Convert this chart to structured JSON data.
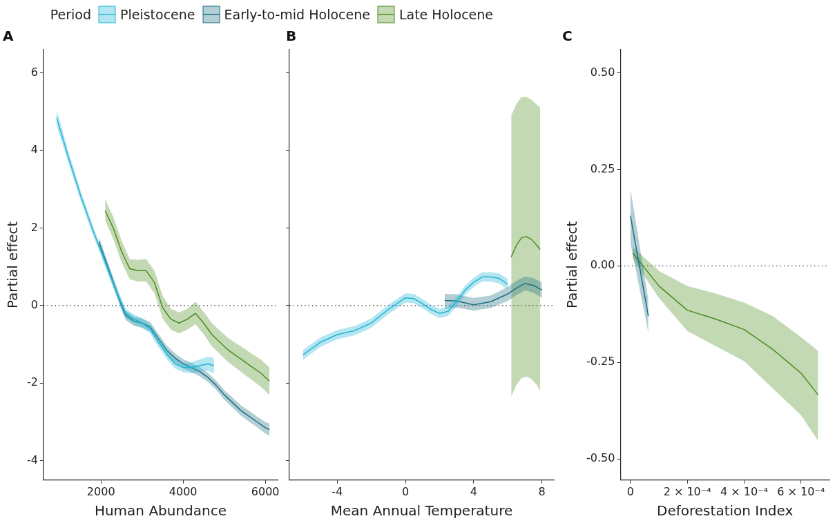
{
  "chart_data": [
    {
      "type": "line",
      "title": "A",
      "xlabel": "Human Abundance",
      "ylabel": "Partial effect",
      "legend": "top right",
      "legend_title": "Period",
      "marker": "none",
      "xlim": [
        600,
        6300
      ],
      "xticks": [
        2000,
        4000,
        6000
      ],
      "ylim": [
        -4.5,
        6.6
      ],
      "yticks": [
        -4,
        -2,
        0,
        2,
        4,
        6
      ],
      "ref_lines": [
        {
          "axis": "y",
          "value": 0,
          "line_style": "dotted"
        }
      ],
      "series": [
        {
          "name": "Pleistocene",
          "color": "#1fb5d6",
          "x": [
            920,
            1200,
            1500,
            1800,
            2000,
            2200,
            2400,
            2600,
            2800,
            3000,
            3200,
            3400,
            3600,
            3800,
            4000,
            4200,
            4400,
            4600,
            4750
          ],
          "values": [
            4.85,
            3.85,
            2.85,
            1.95,
            1.4,
            0.85,
            0.3,
            -0.2,
            -0.35,
            -0.45,
            -0.6,
            -0.95,
            -1.25,
            -1.5,
            -1.6,
            -1.6,
            -1.55,
            -1.5,
            -1.55
          ],
          "lower": [
            4.65,
            3.7,
            2.72,
            1.83,
            1.28,
            0.73,
            0.18,
            -0.32,
            -0.47,
            -0.57,
            -0.72,
            -1.07,
            -1.37,
            -1.62,
            -1.72,
            -1.74,
            -1.71,
            -1.68,
            -1.75
          ],
          "upper": [
            5.05,
            4.0,
            2.98,
            2.07,
            1.52,
            0.97,
            0.42,
            -0.08,
            -0.23,
            -0.33,
            -0.48,
            -0.83,
            -1.13,
            -1.38,
            -1.48,
            -1.46,
            -1.39,
            -1.32,
            -1.35
          ]
        },
        {
          "name": "Early-to-mid Holocene",
          "color": "#1a6e82",
          "x": [
            1950,
            2200,
            2400,
            2500,
            2600,
            2800,
            3000,
            3200,
            3400,
            3600,
            3800,
            4000,
            4200,
            4400,
            4600,
            4800,
            5000,
            5200,
            5400,
            5600,
            5800,
            6000,
            6100
          ],
          "values": [
            1.65,
            0.9,
            0.3,
            0.0,
            -0.25,
            -0.4,
            -0.45,
            -0.55,
            -0.85,
            -1.15,
            -1.35,
            -1.5,
            -1.6,
            -1.7,
            -1.85,
            -2.05,
            -2.3,
            -2.5,
            -2.7,
            -2.85,
            -3.0,
            -3.15,
            -3.2
          ],
          "lower": [
            1.53,
            0.78,
            0.18,
            -0.12,
            -0.37,
            -0.52,
            -0.57,
            -0.67,
            -0.97,
            -1.27,
            -1.47,
            -1.62,
            -1.72,
            -1.82,
            -1.97,
            -2.17,
            -2.42,
            -2.63,
            -2.83,
            -2.99,
            -3.14,
            -3.3,
            -3.36
          ],
          "upper": [
            1.77,
            1.02,
            0.42,
            0.12,
            -0.13,
            -0.28,
            -0.33,
            -0.43,
            -0.73,
            -1.03,
            -1.23,
            -1.38,
            -1.48,
            -1.58,
            -1.73,
            -1.93,
            -2.18,
            -2.37,
            -2.57,
            -2.71,
            -2.86,
            -3.0,
            -3.04
          ]
        },
        {
          "name": "Late Holocene",
          "color": "#4c8c1e",
          "x": [
            2100,
            2300,
            2500,
            2700,
            2900,
            3100,
            3300,
            3500,
            3700,
            3900,
            4100,
            4300,
            4500,
            4700,
            4900,
            5100,
            5300,
            5500,
            5700,
            5900,
            6100
          ],
          "values": [
            2.45,
            2.0,
            1.4,
            0.95,
            0.9,
            0.9,
            0.6,
            -0.05,
            -0.35,
            -0.45,
            -0.35,
            -0.2,
            -0.45,
            -0.75,
            -0.95,
            -1.15,
            -1.3,
            -1.45,
            -1.6,
            -1.75,
            -1.95
          ],
          "lower": [
            2.2,
            1.72,
            1.12,
            0.68,
            0.62,
            0.62,
            0.32,
            -0.33,
            -0.62,
            -0.72,
            -0.62,
            -0.48,
            -0.74,
            -1.05,
            -1.25,
            -1.46,
            -1.62,
            -1.78,
            -1.94,
            -2.1,
            -2.3
          ],
          "upper": [
            2.75,
            2.28,
            1.68,
            1.2,
            1.18,
            1.2,
            0.9,
            0.25,
            -0.08,
            -0.18,
            -0.08,
            0.1,
            -0.16,
            -0.45,
            -0.65,
            -0.84,
            -0.98,
            -1.12,
            -1.26,
            -1.4,
            -1.6
          ]
        }
      ]
    },
    {
      "type": "line",
      "title": "B",
      "xlabel": "Mean Annual Temperature",
      "marker": "none",
      "tick_labels": "x",
      "xlim": [
        -6.8,
        8.7
      ],
      "xticks": [
        -4,
        0,
        4,
        8
      ],
      "ylim": [
        -4.5,
        6.6
      ],
      "yticks": [
        -4,
        -2,
        0,
        2,
        4,
        6
      ],
      "ref_lines": [
        {
          "axis": "y",
          "value": 0,
          "line_style": "dotted"
        }
      ],
      "series": [
        {
          "color": "#1fb5d6",
          "x": [
            -6,
            -5,
            -4,
            -3,
            -2,
            -1,
            0,
            0.5,
            1,
            1.5,
            2,
            2.5,
            3,
            3.5,
            4,
            4.5,
            5,
            5.5,
            6
          ],
          "values": [
            -1.27,
            -0.95,
            -0.75,
            -0.65,
            -0.45,
            -0.1,
            0.2,
            0.18,
            0.05,
            -0.1,
            -0.2,
            -0.15,
            0.1,
            0.4,
            0.6,
            0.74,
            0.74,
            0.7,
            0.55
          ],
          "lower": [
            -1.4,
            -1.07,
            -0.87,
            -0.77,
            -0.57,
            -0.22,
            0.08,
            0.06,
            -0.07,
            -0.22,
            -0.32,
            -0.27,
            -0.02,
            0.28,
            0.48,
            0.62,
            0.62,
            0.57,
            0.41
          ],
          "upper": [
            -1.14,
            -0.83,
            -0.63,
            -0.53,
            -0.33,
            0.02,
            0.32,
            0.3,
            0.17,
            0.02,
            -0.08,
            -0.03,
            0.22,
            0.52,
            0.72,
            0.86,
            0.86,
            0.83,
            0.69
          ]
        },
        {
          "color": "#1a6e82",
          "x": [
            2.3,
            3,
            4,
            5,
            6,
            6.5,
            7,
            7.5,
            8
          ],
          "values": [
            0.13,
            0.12,
            0.02,
            0.1,
            0.3,
            0.45,
            0.57,
            0.52,
            0.4
          ],
          "lower": [
            -0.08,
            -0.05,
            -0.13,
            -0.06,
            0.12,
            0.27,
            0.39,
            0.33,
            0.2
          ],
          "upper": [
            0.3,
            0.29,
            0.2,
            0.26,
            0.48,
            0.64,
            0.75,
            0.71,
            0.6
          ]
        },
        {
          "color": "#4c8c1e",
          "x": [
            6.2,
            6.5,
            6.8,
            7.1,
            7.4,
            7.7,
            7.9
          ],
          "values": [
            1.25,
            1.55,
            1.75,
            1.78,
            1.7,
            1.55,
            1.45
          ],
          "lower": [
            -2.35,
            -2.05,
            -1.87,
            -1.83,
            -1.9,
            -2.05,
            -2.2
          ],
          "upper": [
            4.9,
            5.2,
            5.37,
            5.38,
            5.3,
            5.18,
            5.1
          ]
        }
      ]
    },
    {
      "type": "line",
      "title": "C",
      "xlabel": "Deforestation Index",
      "ylabel": "Partial effect",
      "marker": "none",
      "xlim": [
        -3.5e-05,
        0.0007
      ],
      "xticks": [
        0,
        {
          "value": 0.0002,
          "label": "2 × 10⁻⁴"
        },
        {
          "value": 0.0004,
          "label": "4 × 10⁻⁴"
        },
        {
          "value": 0.0006,
          "label": "6 × 10⁻⁴"
        }
      ],
      "ylim": [
        -0.555,
        0.56
      ],
      "yticks": [
        {
          "value": -0.5,
          "label": "-0.50"
        },
        {
          "value": -0.25,
          "label": "-0.25"
        },
        {
          "value": 0,
          "label": "0.00"
        },
        {
          "value": 0.25,
          "label": "0.25"
        },
        {
          "value": 0.5,
          "label": "0.50"
        }
      ],
      "ref_lines": [
        {
          "axis": "y",
          "value": 0,
          "line_style": "dotted"
        }
      ],
      "series": [
        {
          "color": "#1a6e82",
          "x": [
            0,
            6.3e-05
          ],
          "values": [
            0.13,
            -0.13
          ],
          "lower": [
            0.06,
            -0.173
          ],
          "upper": [
            0.2,
            -0.087
          ]
        },
        {
          "color": "#4c8c1e",
          "x": [
            8e-06,
            0.0001,
            0.0002,
            0.0003,
            0.0004,
            0.0005,
            0.0006,
            0.00066
          ],
          "values": [
            0.033,
            -0.052,
            -0.115,
            -0.138,
            -0.165,
            -0.216,
            -0.278,
            -0.334
          ],
          "lower": [
            0.018,
            -0.083,
            -0.169,
            -0.208,
            -0.247,
            -0.317,
            -0.387,
            -0.453
          ],
          "upper": [
            0.049,
            -0.013,
            -0.052,
            -0.072,
            -0.095,
            -0.13,
            -0.185,
            -0.22
          ]
        }
      ]
    }
  ]
}
